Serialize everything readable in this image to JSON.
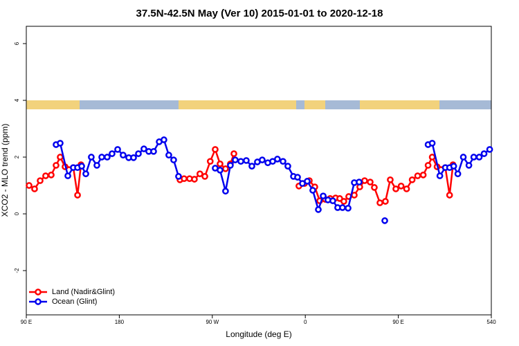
{
  "chart_data": {
    "type": "line",
    "title": "37.5N-42.5N May (Ver 10)   2015-01-01 to 2020-12-18",
    "x_label": "Longitude (deg E)",
    "y_label": "XCO2 - MLO trend (ppm)",
    "xlim": [
      90,
      540
    ],
    "ylim": [
      -3.56,
      6.61
    ],
    "xticks": [
      {
        "value": 90,
        "label": "90 E"
      },
      180,
      {
        "value": 270,
        "label": "90 W"
      },
      {
        "value": 360,
        "label": "0"
      },
      {
        "value": 450,
        "label": "90 E"
      },
      540
    ],
    "yticks": [
      -2,
      0,
      2,
      4,
      6
    ],
    "grid": false,
    "legend": "bottom-left",
    "series": [
      {
        "name": "Land (Nadir&Glint)",
        "color": "#ff0000",
        "x": [
          92.7,
          98,
          103.4,
          108.7,
          114.1,
          118.8,
          122.8,
          127.5,
          135.5,
          139.6,
          142.9,
          null,
          238.7,
          242.7,
          248,
          252.7,
          258,
          262.8,
          268,
          272.8,
          277.5,
          282.8,
          287.5,
          290.9,
          null,
          353.8,
          359.2,
          363.9,
          369.2,
          373.9,
          379.3,
          384,
          389.3,
          393.3,
          397.3,
          402,
          407.4,
          412.7,
          417.4,
          422.8,
          426.8,
          432.2,
          437.5,
          442.2,
          447.6,
          452.7,
          458,
          463.4,
          468.7,
          474.1,
          478.8,
          482.8,
          487.5,
          495.5,
          499.6,
          502.9
        ],
        "values": [
          1.0,
          0.88,
          1.17,
          1.34,
          1.37,
          1.71,
          2.0,
          1.66,
          1.63,
          0.66,
          1.73,
          null,
          1.2,
          1.24,
          1.24,
          1.22,
          1.41,
          1.32,
          1.85,
          2.27,
          1.76,
          1.59,
          1.76,
          2.12,
          null,
          0.98,
          1.07,
          1.17,
          0.95,
          0.46,
          0.51,
          0.54,
          0.56,
          0.54,
          0.44,
          0.61,
          0.66,
          0.95,
          1.17,
          1.12,
          0.93,
          0.39,
          0.44,
          1.2,
          0.88,
          0.98,
          0.88,
          1.2,
          1.34,
          1.37,
          1.71,
          2.0,
          1.66,
          1.63,
          0.66,
          1.73
        ]
      },
      {
        "name": "Ocean (Glint)",
        "color": "#0000ee",
        "x": [
          118.8,
          122.8,
          130.2,
          135.5,
          139.6,
          143.6,
          147.6,
          152.9,
          158.3,
          163,
          168.3,
          173,
          178.4,
          183.7,
          189.1,
          193.8,
          198.5,
          203.8,
          208.5,
          213.2,
          218.6,
          223.2,
          227.9,
          232.6,
          237.3,
          null,
          272.8,
          277.5,
          282.8,
          287.5,
          292.2,
          297.6,
          302.9,
          308.3,
          313.6,
          318.3,
          323.7,
          328.4,
          333,
          338.4,
          343.1,
          348.5,
          352.5,
          357.2,
          361.9,
          367.2,
          372.6,
          377.3,
          381.9,
          386.6,
          391.3,
          396,
          401.4,
          407.4,
          412.1,
          null,
          436.9,
          null,
          478.8,
          482.8,
          490.2,
          495.5,
          499.6,
          503.6,
          507.6,
          512.9,
          518.3,
          523,
          528.3,
          533,
          538.4
        ],
        "values": [
          2.44,
          2.49,
          1.34,
          1.63,
          1.63,
          1.68,
          1.41,
          2.0,
          1.71,
          2.0,
          2.0,
          2.12,
          2.27,
          2.07,
          1.98,
          1.98,
          2.12,
          2.29,
          2.2,
          2.2,
          2.54,
          2.61,
          2.07,
          1.9,
          1.32,
          null,
          1.61,
          1.54,
          0.8,
          1.71,
          1.9,
          1.85,
          1.88,
          1.68,
          1.83,
          1.9,
          1.8,
          1.85,
          1.93,
          1.85,
          1.68,
          1.32,
          1.29,
          1.07,
          1.15,
          0.83,
          0.15,
          0.63,
          0.49,
          0.46,
          0.22,
          0.22,
          0.2,
          1.1,
          1.12,
          null,
          -0.24,
          null,
          2.44,
          2.49,
          1.34,
          1.63,
          1.63,
          1.68,
          1.41,
          2.0,
          1.71,
          2.0,
          2.0,
          2.12,
          2.27
        ]
      }
    ]
  }
}
